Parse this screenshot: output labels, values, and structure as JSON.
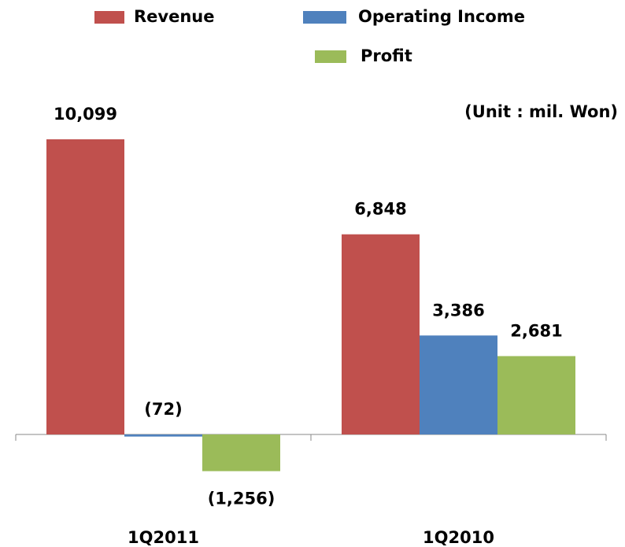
{
  "chart_data": {
    "type": "bar",
    "note": "(Unit : mil. Won)",
    "categories": [
      "1Q2011",
      "1Q2010"
    ],
    "series": [
      {
        "name": "Revenue",
        "color": "#c0504d",
        "values": [
          10099,
          6848
        ],
        "value_labels": [
          "10,099",
          "6,848"
        ]
      },
      {
        "name": "Operating Income",
        "color": "#4f81bd",
        "values": [
          -72,
          3386
        ],
        "value_labels": [
          "(72)",
          "3,386"
        ]
      },
      {
        "name": "Profit",
        "color": "#9bbb59",
        "values": [
          -1256,
          2681
        ],
        "value_labels": [
          "(1,256)",
          "2,681"
        ]
      }
    ]
  }
}
